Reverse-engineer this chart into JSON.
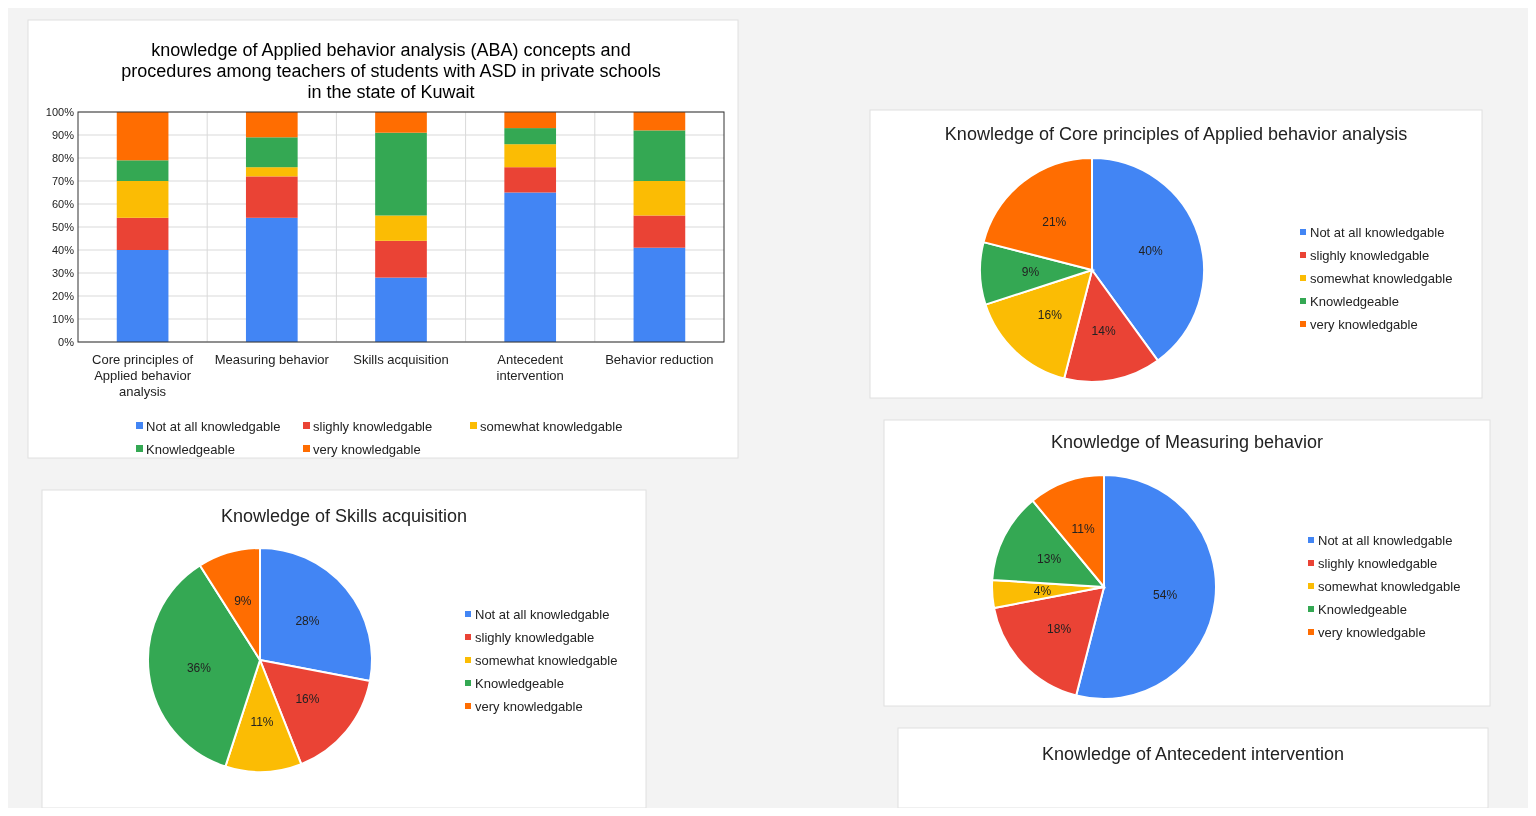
{
  "chart_data": [
    {
      "type": "bar",
      "stacked": true,
      "title": "knowledge of Applied behavior analysis (ABA) concepts and procedures among teachers of students with ASD in private schools in the state of Kuwait",
      "categories": [
        "Core principles of Applied behavior analysis",
        "Measuring behavior",
        "Skills acquisition",
        "Antecedent intervention",
        "Behavior reduction"
      ],
      "series": [
        {
          "name": "Not at all knowledgable",
          "color": "#4285f4",
          "values": [
            40,
            54,
            28,
            65,
            41
          ]
        },
        {
          "name": "slighly knowledgable",
          "color": "#ea4335",
          "values": [
            14,
            18,
            16,
            11,
            14
          ]
        },
        {
          "name": "somewhat knowledgable",
          "color": "#fbbc04",
          "values": [
            16,
            4,
            11,
            10,
            15
          ]
        },
        {
          "name": "Knowledgeable",
          "color": "#34a853",
          "values": [
            9,
            13,
            36,
            7,
            22
          ]
        },
        {
          "name": "very knowledgable",
          "color": "#ff6d01",
          "values": [
            21,
            11,
            9,
            7,
            8
          ]
        }
      ],
      "ylim": [
        0,
        100
      ],
      "yticks": [
        {
          "value": 0,
          "label": "0%"
        },
        {
          "value": 10,
          "label": "10%"
        },
        {
          "value": 20,
          "label": "20%"
        },
        {
          "value": 30,
          "label": "30%"
        },
        {
          "value": 40,
          "label": "40%"
        },
        {
          "value": 50,
          "label": "50%"
        },
        {
          "value": 60,
          "label": "60%"
        },
        {
          "value": 70,
          "label": "70%"
        },
        {
          "value": 80,
          "label": "80%"
        },
        {
          "value": 90,
          "label": "90%"
        },
        {
          "value": 100,
          "label": "100%"
        }
      ],
      "grid": true,
      "legend": "bottom"
    },
    {
      "type": "pie",
      "title": "Knowledge of Core principles of Applied behavior analysis",
      "categories": [
        "Not at all knowledgable",
        "slighly knowledgable",
        "somewhat knowledgable",
        "Knowledgeable",
        "very knowledgable"
      ],
      "values": [
        40,
        14,
        16,
        9,
        21
      ],
      "colors": [
        "#4285f4",
        "#ea4335",
        "#fbbc04",
        "#34a853",
        "#ff6d01"
      ],
      "value_labels": [
        "40%",
        "14%",
        "16%",
        "9%",
        "21%"
      ],
      "legend": "right"
    },
    {
      "type": "pie",
      "title": "Knowledge of Measuring behavior",
      "categories": [
        "Not at all knowledgable",
        "slighly knowledgable",
        "somewhat knowledgable",
        "Knowledgeable",
        "very knowledgable"
      ],
      "values": [
        54,
        18,
        4,
        13,
        11
      ],
      "colors": [
        "#4285f4",
        "#ea4335",
        "#fbbc04",
        "#34a853",
        "#ff6d01"
      ],
      "value_labels": [
        "54%",
        "18%",
        "4%",
        "13%",
        "11%"
      ],
      "legend": "right"
    },
    {
      "type": "pie",
      "title": "Knowledge of Skills acquisition",
      "categories": [
        "Not at all knowledgable",
        "slighly knowledgable",
        "somewhat knowledgable",
        "Knowledgeable",
        "very knowledgable"
      ],
      "values": [
        28,
        16,
        11,
        36,
        9
      ],
      "colors": [
        "#4285f4",
        "#ea4335",
        "#fbbc04",
        "#34a853",
        "#ff6d01"
      ],
      "value_labels": [
        "28%",
        "16%",
        "11%",
        "36%",
        "9%"
      ],
      "legend": "right"
    },
    {
      "type": "other",
      "title": "Knowledge of Antecedent intervention"
    }
  ]
}
